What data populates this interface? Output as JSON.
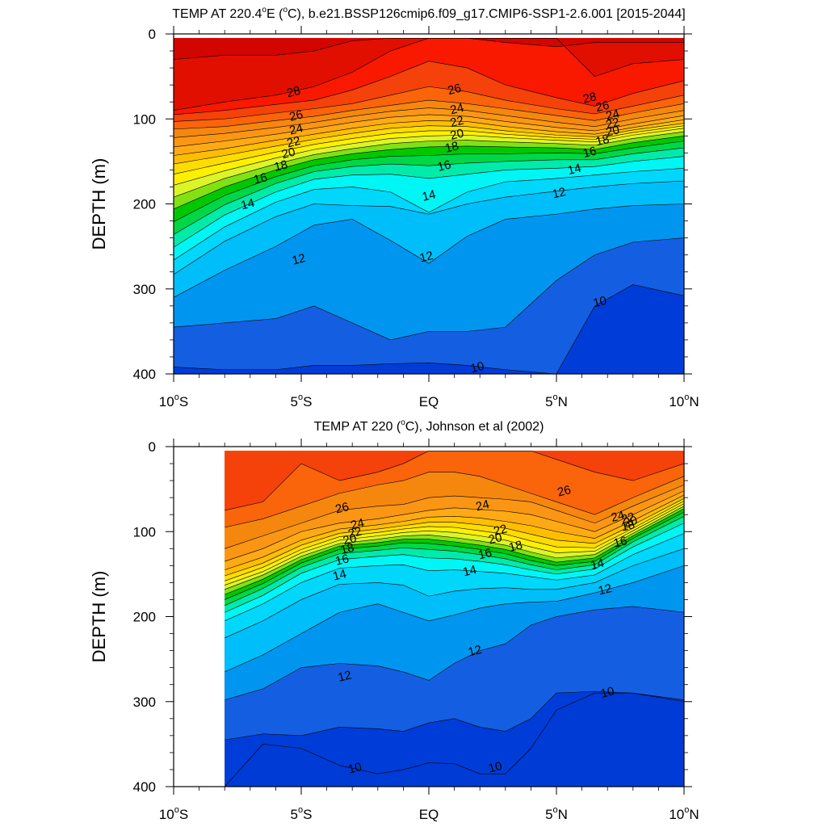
{
  "chart_data": [
    {
      "type": "filled-contour",
      "title": "TEMP AT 220.4°E (°C), b.e21.BSSP126cmip6.f09_g17.CMIP6-SSP1-2.6.001 [2015-2044]",
      "title_parts": [
        "TEMP AT 220.4",
        "o",
        "E (",
        "o",
        "C), b.e21.BSSP126cmip6.f09_g17.CMIP6-SSP1-2.6.001 [2015-2044]"
      ],
      "ylabel": "DEPTH (m)",
      "xlabel": "",
      "xlim": [
        -10,
        10
      ],
      "ylim": [
        400,
        0
      ],
      "xticks": [
        {
          "v": -10,
          "num": "10",
          "hem": "S"
        },
        {
          "v": -5,
          "num": "5",
          "hem": "S"
        },
        {
          "v": 0,
          "num": "EQ",
          "hem": ""
        },
        {
          "v": 5,
          "num": "5",
          "hem": "N"
        },
        {
          "v": 10,
          "num": "10",
          "hem": "N"
        }
      ],
      "yticks": [
        0,
        100,
        200,
        300,
        400
      ],
      "data_xrange": [
        -10,
        10
      ],
      "data_depth_top": 5,
      "contour_interval": 1,
      "x_nodes": [
        -10,
        -8,
        -6,
        -4.5,
        -3,
        -1.5,
        0,
        1.5,
        3,
        5,
        6.5,
        8,
        10
      ],
      "isotherms": [
        {
          "t": 30,
          "d": [
            30,
            25,
            25,
            20,
            8,
            5,
            5,
            5,
            10,
            15,
            10,
            10,
            10
          ]
        },
        {
          "t": 29,
          "d": [
            90,
            80,
            72,
            62,
            45,
            20,
            5,
            5,
            5,
            5,
            50,
            35,
            30
          ]
        },
        {
          "t": 28,
          "d": [
            95,
            90,
            83,
            78,
            66,
            50,
            32,
            40,
            60,
            75,
            85,
            70,
            55
          ]
        },
        {
          "t": 27,
          "d": [
            103,
            100,
            93,
            88,
            82,
            72,
            62,
            68,
            78,
            88,
            94,
            85,
            72
          ]
        },
        {
          "t": 26,
          "d": [
            112,
            109,
            102,
            97,
            90,
            84,
            78,
            82,
            88,
            96,
            102,
            93,
            82
          ]
        },
        {
          "t": 25,
          "d": [
            122,
            117,
            110,
            104,
            97,
            91,
            87,
            90,
            96,
            104,
            109,
            100,
            90
          ]
        },
        {
          "t": 24,
          "d": [
            133,
            126,
            118,
            111,
            104,
            98,
            95,
            97,
            103,
            110,
            114,
            106,
            96
          ]
        },
        {
          "t": 23,
          "d": [
            143,
            135,
            125,
            118,
            111,
            105,
            102,
            103,
            109,
            115,
            118,
            110,
            101
          ]
        },
        {
          "t": 22,
          "d": [
            153,
            143,
            132,
            124,
            117,
            111,
            108,
            109,
            114,
            119,
            121,
            113,
            105
          ]
        },
        {
          "t": 21,
          "d": [
            165,
            152,
            139,
            130,
            123,
            117,
            114,
            114,
            118,
            122,
            124,
            116,
            108
          ]
        },
        {
          "t": 20,
          "d": [
            178,
            161,
            146,
            136,
            129,
            123,
            120,
            119,
            122,
            125,
            127,
            119,
            111
          ]
        },
        {
          "t": 19,
          "d": [
            192,
            170,
            153,
            142,
            135,
            129,
            126,
            125,
            127,
            129,
            131,
            123,
            115
          ]
        },
        {
          "t": 18,
          "d": [
            206,
            180,
            160,
            148,
            141,
            136,
            133,
            132,
            133,
            134,
            136,
            128,
            120
          ]
        },
        {
          "t": 17,
          "d": [
            221,
            190,
            168,
            155,
            148,
            144,
            143,
            141,
            141,
            140,
            141,
            134,
            126
          ]
        },
        {
          "t": 16,
          "d": [
            236,
            201,
            176,
            162,
            156,
            153,
            155,
            152,
            150,
            148,
            148,
            141,
            134
          ]
        },
        {
          "t": 15,
          "d": [
            251,
            213,
            186,
            171,
            166,
            165,
            170,
            165,
            160,
            158,
            156,
            150,
            144
          ]
        },
        {
          "t": 14,
          "d": [
            266,
            227,
            198,
            183,
            180,
            186,
            210,
            186,
            174,
            170,
            166,
            162,
            158
          ]
        },
        {
          "t": 13,
          "d": [
            283,
            244,
            215,
            200,
            202,
            203,
            212,
            200,
            192,
            185,
            180,
            176,
            173
          ]
        },
        {
          "t": 12,
          "d": [
            310,
            278,
            250,
            225,
            218,
            243,
            270,
            238,
            218,
            212,
            206,
            202,
            200
          ]
        },
        {
          "t": 11,
          "d": [
            345,
            340,
            335,
            320,
            340,
            360,
            350,
            350,
            345,
            290,
            260,
            245,
            240
          ]
        },
        {
          "t": 10,
          "d": [
            392,
            395,
            395,
            390,
            390,
            388,
            387,
            390,
            395,
            400,
            320,
            295,
            308
          ]
        }
      ],
      "labels": [
        {
          "t": "28",
          "x": -5.3,
          "y": 68
        },
        {
          "t": "26",
          "x": -5.2,
          "y": 96
        },
        {
          "t": "24",
          "x": -5.2,
          "y": 112
        },
        {
          "t": "22",
          "x": -5.3,
          "y": 127
        },
        {
          "t": "20",
          "x": -5.5,
          "y": 140
        },
        {
          "t": "18",
          "x": -5.8,
          "y": 155
        },
        {
          "t": "16",
          "x": -6.6,
          "y": 170
        },
        {
          "t": "14",
          "x": -7.1,
          "y": 200
        },
        {
          "t": "12",
          "x": -5.1,
          "y": 265
        },
        {
          "t": "26",
          "x": 1.0,
          "y": 65
        },
        {
          "t": "24",
          "x": 1.1,
          "y": 88
        },
        {
          "t": "22",
          "x": 1.1,
          "y": 103
        },
        {
          "t": "20",
          "x": 1.1,
          "y": 118
        },
        {
          "t": "18",
          "x": 0.9,
          "y": 133
        },
        {
          "t": "16",
          "x": 0.6,
          "y": 155
        },
        {
          "t": "14",
          "x": 0.0,
          "y": 190
        },
        {
          "t": "12",
          "x": -0.1,
          "y": 262
        },
        {
          "t": "10",
          "x": 1.9,
          "y": 392
        },
        {
          "t": "28",
          "x": 6.3,
          "y": 75
        },
        {
          "t": "26",
          "x": 6.8,
          "y": 85
        },
        {
          "t": "24",
          "x": 7.2,
          "y": 95
        },
        {
          "t": "22",
          "x": 7.2,
          "y": 105
        },
        {
          "t": "20",
          "x": 7.2,
          "y": 114
        },
        {
          "t": "18",
          "x": 6.8,
          "y": 125
        },
        {
          "t": "16",
          "x": 6.3,
          "y": 139
        },
        {
          "t": "14",
          "x": 5.7,
          "y": 159
        },
        {
          "t": "12",
          "x": 5.1,
          "y": 187
        },
        {
          "t": "10",
          "x": 6.7,
          "y": 315
        }
      ]
    },
    {
      "type": "filled-contour",
      "title": "TEMP AT 220 (°C), Johnson et al (2002)",
      "title_parts": [
        "TEMP AT 220 (",
        "o",
        "C), Johnson et al (2002)"
      ],
      "ylabel": "DEPTH (m)",
      "xlabel": "",
      "xlim": [
        -10,
        10
      ],
      "ylim": [
        400,
        0
      ],
      "xticks": [
        {
          "v": -10,
          "num": "10",
          "hem": "S"
        },
        {
          "v": -5,
          "num": "5",
          "hem": "S"
        },
        {
          "v": 0,
          "num": "EQ",
          "hem": ""
        },
        {
          "v": 5,
          "num": "5",
          "hem": "N"
        },
        {
          "v": 10,
          "num": "10",
          "hem": "N"
        }
      ],
      "yticks": [
        0,
        100,
        200,
        300,
        400
      ],
      "data_xrange": [
        -8,
        10
      ],
      "data_depth_top": 5,
      "contour_interval": 1,
      "x_nodes": [
        -8,
        -6.5,
        -5,
        -3.5,
        -2,
        -1,
        0,
        1,
        2,
        3,
        4,
        5,
        6.5,
        8,
        10
      ],
      "isotherms": [
        {
          "t": 27,
          "d": [
            75,
            65,
            20,
            40,
            30,
            20,
            5,
            5,
            5,
            5,
            5,
            15,
            30,
            40,
            20
          ]
        },
        {
          "t": 26,
          "d": [
            95,
            85,
            70,
            55,
            45,
            40,
            30,
            30,
            35,
            45,
            55,
            65,
            80,
            60,
            35
          ]
        },
        {
          "t": 25,
          "d": [
            120,
            105,
            90,
            75,
            70,
            68,
            60,
            58,
            60,
            62,
            65,
            75,
            90,
            70,
            45
          ]
        },
        {
          "t": 24,
          "d": [
            135,
            120,
            100,
            90,
            85,
            80,
            75,
            72,
            74,
            76,
            80,
            88,
            100,
            80,
            52
          ]
        },
        {
          "t": 23,
          "d": [
            145,
            130,
            110,
            97,
            92,
            88,
            83,
            82,
            84,
            88,
            93,
            100,
            108,
            87,
            57
          ]
        },
        {
          "t": 22,
          "d": [
            152,
            137,
            116,
            102,
            97,
            93,
            89,
            89,
            92,
            96,
            103,
            110,
            114,
            92,
            61
          ]
        },
        {
          "t": 21,
          "d": [
            158,
            142,
            121,
            106,
            101,
            97,
            94,
            95,
            99,
            103,
            111,
            118,
            119,
            96,
            64
          ]
        },
        {
          "t": 20,
          "d": [
            163,
            147,
            125,
            110,
            105,
            101,
            99,
            101,
            105,
            110,
            118,
            125,
            123,
            99,
            67
          ]
        },
        {
          "t": 19,
          "d": [
            168,
            151,
            129,
            114,
            109,
            105,
            104,
            107,
            111,
            116,
            124,
            131,
            127,
            102,
            70
          ]
        },
        {
          "t": 18,
          "d": [
            174,
            156,
            133,
            117,
            113,
            109,
            109,
            112,
            116,
            121,
            129,
            136,
            131,
            105,
            73
          ]
        },
        {
          "t": 17,
          "d": [
            180,
            161,
            137,
            121,
            117,
            113,
            114,
            117,
            121,
            126,
            134,
            140,
            135,
            108,
            77
          ]
        },
        {
          "t": 16,
          "d": [
            187,
            167,
            142,
            126,
            122,
            119,
            121,
            123,
            127,
            132,
            139,
            145,
            139,
            112,
            82
          ]
        },
        {
          "t": 15,
          "d": [
            195,
            175,
            149,
            133,
            129,
            127,
            131,
            132,
            135,
            139,
            145,
            150,
            144,
            118,
            90
          ]
        },
        {
          "t": 14,
          "d": [
            205,
            185,
            160,
            143,
            140,
            139,
            146,
            145,
            147,
            149,
            153,
            157,
            151,
            127,
            102
          ]
        },
        {
          "t": 13,
          "d": [
            225,
            205,
            180,
            162,
            160,
            163,
            176,
            170,
            167,
            166,
            168,
            168,
            160,
            140,
            120
          ]
        },
        {
          "t": 12,
          "d": [
            265,
            245,
            220,
            195,
            185,
            195,
            205,
            198,
            190,
            185,
            183,
            182,
            172,
            160,
            140
          ]
        },
        {
          "t": 11,
          "d": [
            298,
            285,
            260,
            255,
            258,
            265,
            275,
            255,
            240,
            232,
            210,
            200,
            192,
            188,
            195
          ]
        },
        {
          "t": 10,
          "d": [
            345,
            338,
            340,
            330,
            332,
            335,
            325,
            320,
            330,
            335,
            320,
            290,
            288,
            290,
            298
          ]
        },
        {
          "t": 9,
          "d": [
            400,
            350,
            355,
            375,
            385,
            380,
            372,
            373,
            385,
            385,
            355,
            310,
            290,
            290,
            300
          ]
        }
      ],
      "labels": [
        {
          "t": "26",
          "x": -3.4,
          "y": 72
        },
        {
          "t": "24",
          "x": -2.8,
          "y": 91
        },
        {
          "t": "22",
          "x": -2.9,
          "y": 101
        },
        {
          "t": "20",
          "x": -3.1,
          "y": 109
        },
        {
          "t": "18",
          "x": -3.2,
          "y": 120
        },
        {
          "t": "16",
          "x": -3.4,
          "y": 133
        },
        {
          "t": "14",
          "x": -3.5,
          "y": 151
        },
        {
          "t": "12",
          "x": -3.3,
          "y": 270
        },
        {
          "t": "10",
          "x": -2.9,
          "y": 378
        },
        {
          "t": "24",
          "x": 2.1,
          "y": 69
        },
        {
          "t": "22",
          "x": 2.8,
          "y": 98
        },
        {
          "t": "20",
          "x": 2.6,
          "y": 108
        },
        {
          "t": "18",
          "x": 3.4,
          "y": 117
        },
        {
          "t": "16",
          "x": 2.2,
          "y": 126
        },
        {
          "t": "14",
          "x": 1.6,
          "y": 146
        },
        {
          "t": "12",
          "x": 1.8,
          "y": 240
        },
        {
          "t": "10",
          "x": 2.6,
          "y": 377
        },
        {
          "t": "26",
          "x": 5.3,
          "y": 52
        },
        {
          "t": "24",
          "x": 7.4,
          "y": 82
        },
        {
          "t": "22",
          "x": 7.8,
          "y": 84
        },
        {
          "t": "20",
          "x": 7.9,
          "y": 88
        },
        {
          "t": "18",
          "x": 7.8,
          "y": 93
        },
        {
          "t": "16",
          "x": 7.5,
          "y": 112
        },
        {
          "t": "14",
          "x": 6.6,
          "y": 138
        },
        {
          "t": "12",
          "x": 6.9,
          "y": 168
        },
        {
          "t": "10",
          "x": 7.0,
          "y": 289
        }
      ]
    }
  ]
}
